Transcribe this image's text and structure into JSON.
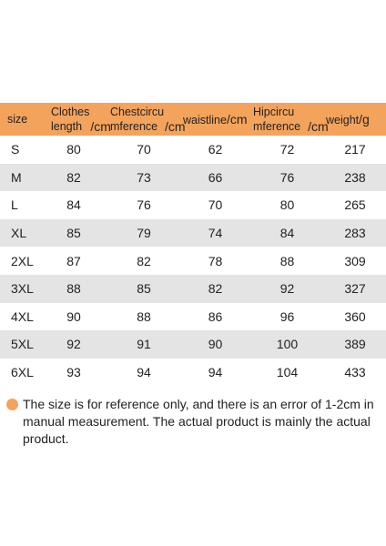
{
  "table": {
    "headers": {
      "size": "size",
      "clothes_length": [
        "Clothes",
        "length"
      ],
      "chest": [
        "Chestcircu",
        "mference"
      ],
      "waistline": "waistline",
      "hip": [
        "Hipcircu",
        "mference"
      ],
      "weight": "weight",
      "unit_cm": "/cm",
      "unit_g": "/g"
    },
    "rows": [
      {
        "size": "S",
        "length": "80",
        "chest": "70",
        "waist": "62",
        "hip": "72",
        "weight": "217"
      },
      {
        "size": "M",
        "length": "82",
        "chest": "73",
        "waist": "66",
        "hip": "76",
        "weight": "238"
      },
      {
        "size": "L",
        "length": "84",
        "chest": "76",
        "waist": "70",
        "hip": "80",
        "weight": "265"
      },
      {
        "size": "XL",
        "length": "85",
        "chest": "79",
        "waist": "74",
        "hip": "84",
        "weight": "283"
      },
      {
        "size": "2XL",
        "length": "87",
        "chest": "82",
        "waist": "78",
        "hip": "88",
        "weight": "309"
      },
      {
        "size": "3XL",
        "length": "88",
        "chest": "85",
        "waist": "82",
        "hip": "92",
        "weight": "327"
      },
      {
        "size": "4XL",
        "length": "90",
        "chest": "88",
        "waist": "86",
        "hip": "96",
        "weight": "360"
      },
      {
        "size": "5XL",
        "length": "92",
        "chest": "91",
        "waist": "90",
        "hip": "100",
        "weight": "389"
      },
      {
        "size": "6XL",
        "length": "93",
        "chest": "94",
        "waist": "94",
        "hip": "104",
        "weight": "433"
      }
    ]
  },
  "note": {
    "bullet_icon": "orange-dot-icon",
    "text": "The size is for reference only, and there is an error of 1-2cm in manual measurement. The actual product is mainly the actual product."
  },
  "colors": {
    "header_bg": "#f4a35c",
    "stripe_bg": "#e4e4e4",
    "bullet": "#f4a35c"
  }
}
